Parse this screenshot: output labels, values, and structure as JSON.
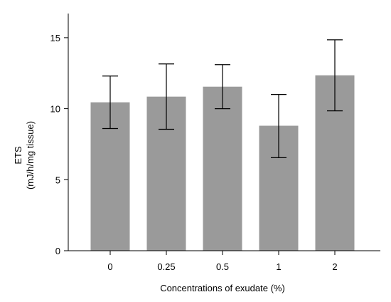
{
  "chart_data": {
    "type": "bar",
    "categories": [
      "0",
      "0.25",
      "0.5",
      "1",
      "2"
    ],
    "values": [
      10.45,
      10.85,
      11.55,
      8.8,
      12.35
    ],
    "error_lower": [
      8.6,
      8.55,
      10.0,
      6.55,
      9.85
    ],
    "error_upper": [
      12.3,
      13.15,
      13.1,
      11.0,
      14.85
    ],
    "xlabel": "Concentrations of exudate (%)",
    "ylabel_line1": "ETS",
    "ylabel_line2": "(mJ/h/mg tissue)",
    "ylim": [
      0,
      16.7
    ],
    "yticks": [
      0,
      5,
      10,
      15
    ],
    "grid": false,
    "colors": {
      "bar": "#9a9a9a",
      "axis": "#000000",
      "error_bar": "#000000"
    }
  }
}
